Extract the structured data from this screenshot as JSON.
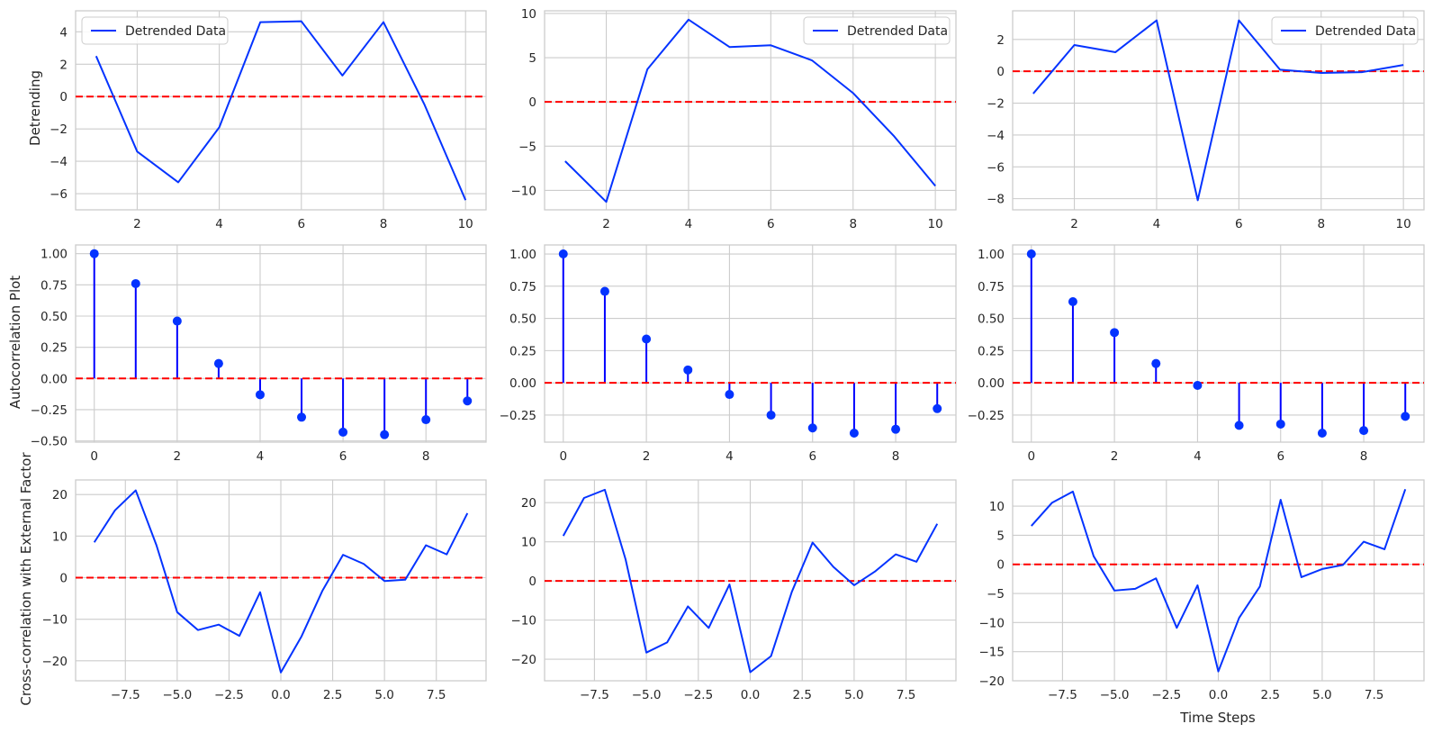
{
  "colors": {
    "line": "#0433ff",
    "zero_line": "#ff0000",
    "stem": "#0000ff",
    "marker": "#0433ff",
    "grid": "#cccccc",
    "frame": "#cccccc"
  },
  "labels": {
    "row0_ylabel": "Detrending",
    "row1_ylabel": "Autocorrelation Plot",
    "row2_ylabel": "Cross-correlation with External Factor",
    "xlabel_last": "Time Steps"
  },
  "chart_data": [
    {
      "id": "detrend-1",
      "type": "line",
      "legend": "Detrended Data",
      "legend_position": "upper-left",
      "zero_line": 0,
      "x": [
        1,
        2,
        3,
        4,
        5,
        6,
        7,
        8,
        9,
        10
      ],
      "y": [
        2.5,
        -3.4,
        -5.3,
        -1.9,
        4.6,
        4.65,
        1.3,
        4.6,
        -0.5,
        -6.4
      ],
      "xlim": [
        0.5,
        10.5
      ],
      "ylim": [
        -7,
        5.3
      ],
      "xticks": [
        2,
        4,
        6,
        8,
        10
      ],
      "yticks": [
        -6,
        -4,
        -2,
        0,
        2,
        4
      ]
    },
    {
      "id": "detrend-2",
      "type": "line",
      "legend": "Detrended Data",
      "legend_position": "upper-right",
      "zero_line": 0,
      "x": [
        1,
        2,
        3,
        4,
        5,
        6,
        7,
        8,
        9,
        10
      ],
      "y": [
        -6.7,
        -11.3,
        3.7,
        9.3,
        6.2,
        6.4,
        4.7,
        1.0,
        -3.9,
        -9.5
      ],
      "xlim": [
        0.5,
        10.5
      ],
      "ylim": [
        -12.2,
        10.3
      ],
      "xticks": [
        2,
        4,
        6,
        8,
        10
      ],
      "yticks": [
        -10,
        -5,
        0,
        5,
        10
      ]
    },
    {
      "id": "detrend-3",
      "type": "line",
      "legend": "Detrended Data",
      "legend_position": "upper-right",
      "zero_line": 0,
      "x": [
        1,
        2,
        3,
        4,
        5,
        6,
        7,
        8,
        9,
        10
      ],
      "y": [
        -1.4,
        1.65,
        1.2,
        3.2,
        -8.1,
        3.2,
        0.1,
        -0.1,
        -0.05,
        0.4
      ],
      "xlim": [
        0.5,
        10.5
      ],
      "ylim": [
        -8.7,
        3.8
      ],
      "xticks": [
        2,
        4,
        6,
        8,
        10
      ],
      "yticks": [
        -8,
        -6,
        -4,
        -2,
        0,
        2
      ]
    },
    {
      "id": "acf-1",
      "type": "stem",
      "zero_line": 0,
      "x": [
        0,
        1,
        2,
        3,
        4,
        5,
        6,
        7,
        8,
        9
      ],
      "y": [
        1.0,
        0.76,
        0.46,
        0.12,
        -0.13,
        -0.31,
        -0.43,
        -0.45,
        -0.33,
        -0.18
      ],
      "xlim": [
        -0.45,
        9.45
      ],
      "ylim": [
        -0.51,
        1.07
      ],
      "xticks": [
        0,
        2,
        4,
        6,
        8
      ],
      "yticks": [
        -0.5,
        -0.25,
        0,
        0.25,
        0.5,
        0.75,
        1.0
      ],
      "yticklabels": [
        "−0.50",
        "−0.25",
        "0.00",
        "0.25",
        "0.50",
        "0.75",
        "1.00"
      ]
    },
    {
      "id": "acf-2",
      "type": "stem",
      "zero_line": 0,
      "x": [
        0,
        1,
        2,
        3,
        4,
        5,
        6,
        7,
        8,
        9
      ],
      "y": [
        1.0,
        0.71,
        0.34,
        0.1,
        -0.09,
        -0.25,
        -0.35,
        -0.39,
        -0.36,
        -0.2
      ],
      "xlim": [
        -0.45,
        9.45
      ],
      "ylim": [
        -0.46,
        1.07
      ],
      "xticks": [
        0,
        2,
        4,
        6,
        8
      ],
      "yticks": [
        -0.25,
        0,
        0.25,
        0.5,
        0.75,
        1.0
      ],
      "yticklabels": [
        "−0.25",
        "0.00",
        "0.25",
        "0.50",
        "0.75",
        "1.00"
      ]
    },
    {
      "id": "acf-3",
      "type": "stem",
      "zero_line": 0,
      "x": [
        0,
        1,
        2,
        3,
        4,
        5,
        6,
        7,
        8,
        9
      ],
      "y": [
        1.0,
        0.63,
        0.39,
        0.15,
        -0.02,
        -0.33,
        -0.32,
        -0.39,
        -0.37,
        -0.26
      ],
      "xlim": [
        -0.45,
        9.45
      ],
      "ylim": [
        -0.46,
        1.07
      ],
      "xticks": [
        0,
        2,
        4,
        6,
        8
      ],
      "yticks": [
        -0.25,
        0,
        0.25,
        0.5,
        0.75,
        1.0
      ],
      "yticklabels": [
        "−0.25",
        "0.00",
        "0.25",
        "0.50",
        "0.75",
        "1.00"
      ]
    },
    {
      "id": "ccf-1",
      "type": "line",
      "zero_line": 0,
      "x": [
        -9,
        -8,
        -7,
        -6,
        -5,
        -4,
        -3,
        -2,
        -1,
        0,
        1,
        2,
        3,
        4,
        5,
        6,
        7,
        8,
        9
      ],
      "y": [
        8.5,
        16.2,
        21.0,
        7.8,
        -8.3,
        -12.6,
        -11.3,
        -14.0,
        -3.5,
        -22.8,
        -14.1,
        -3.2,
        5.5,
        3.3,
        -0.8,
        -0.5,
        7.8,
        5.6,
        15.5
      ],
      "xlim": [
        -9.9,
        9.9
      ],
      "ylim": [
        -24.8,
        23.5
      ],
      "xticks": [
        -7.5,
        -5,
        -2.5,
        0,
        2.5,
        5,
        7.5
      ],
      "yticks": [
        -20,
        -10,
        0,
        10,
        20
      ],
      "xticklabels": [
        "−7.5",
        "−5.0",
        "−2.5",
        "0.0",
        "2.5",
        "5.0",
        "7.5"
      ],
      "yticklabels": [
        "−20",
        "−10",
        "0",
        "10",
        "20"
      ]
    },
    {
      "id": "ccf-2",
      "type": "line",
      "zero_line": 0,
      "x": [
        -9,
        -8,
        -7,
        -6,
        -5,
        -4,
        -3,
        -2,
        -1,
        0,
        1,
        2,
        3,
        4,
        5,
        6,
        7,
        8,
        9
      ],
      "y": [
        11.5,
        21.2,
        23.3,
        5.5,
        -18.3,
        -15.7,
        -6.5,
        -12.0,
        -0.9,
        -23.3,
        -19.2,
        -2.8,
        9.8,
        3.6,
        -1.1,
        2.4,
        6.8,
        4.9,
        14.6
      ],
      "xlim": [
        -9.9,
        9.9
      ],
      "ylim": [
        -25.5,
        25.8
      ],
      "xticks": [
        -7.5,
        -5,
        -2.5,
        0,
        2.5,
        5,
        7.5
      ],
      "yticks": [
        -20,
        -10,
        0,
        10,
        20
      ],
      "xticklabels": [
        "−7.5",
        "−5.0",
        "−2.5",
        "0.0",
        "2.5",
        "5.0",
        "7.5"
      ],
      "yticklabels": [
        "−20",
        "−10",
        "0",
        "10",
        "20"
      ]
    },
    {
      "id": "ccf-3",
      "type": "line",
      "zero_line": 0,
      "x": [
        -9,
        -8,
        -7,
        -6,
        -5,
        -4,
        -3,
        -2,
        -1,
        0,
        1,
        2,
        3,
        4,
        5,
        6,
        7,
        8,
        9
      ],
      "y": [
        6.6,
        10.6,
        12.5,
        1.4,
        -4.5,
        -4.2,
        -2.4,
        -10.9,
        -3.6,
        -18.4,
        -9.2,
        -3.8,
        11.1,
        -2.2,
        -0.8,
        -0.1,
        3.9,
        2.6,
        12.9
      ],
      "xlim": [
        -9.9,
        9.9
      ],
      "ylim": [
        -20,
        14.5
      ],
      "xticks": [
        -7.5,
        -5,
        -2.5,
        0,
        2.5,
        5,
        7.5
      ],
      "yticks": [
        -20,
        -15,
        -10,
        -5,
        0,
        5,
        10
      ],
      "xticklabels": [
        "−7.5",
        "−5.0",
        "−2.5",
        "0.0",
        "2.5",
        "5.0",
        "7.5"
      ],
      "yticklabels": [
        "−20",
        "−15",
        "−10",
        "−5",
        "0",
        "5",
        "10"
      ]
    }
  ]
}
